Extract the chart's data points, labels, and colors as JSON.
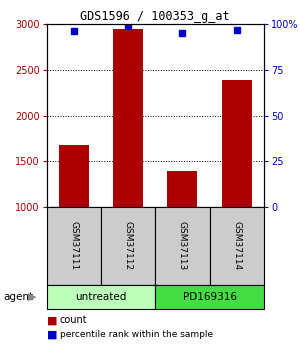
{
  "title": "GDS1596 / 100353_g_at",
  "samples": [
    "GSM37111",
    "GSM37112",
    "GSM37113",
    "GSM37114"
  ],
  "counts": [
    1680,
    2950,
    1390,
    2390
  ],
  "percentile_ranks": [
    96,
    99,
    95,
    97
  ],
  "ymin": 1000,
  "ymax": 3000,
  "yticks_left": [
    1000,
    1500,
    2000,
    2500,
    3000
  ],
  "yticks_right": [
    0,
    25,
    50,
    75,
    100
  ],
  "bar_color": "#aa0000",
  "dot_color": "#0000cc",
  "agent_groups": [
    {
      "label": "untreated",
      "samples": [
        0,
        1
      ],
      "color": "#bbffbb"
    },
    {
      "label": "PD169316",
      "samples": [
        2,
        3
      ],
      "color": "#44dd44"
    }
  ],
  "legend_count_color": "#aa0000",
  "legend_dot_color": "#0000cc",
  "sample_box_color": "#cccccc",
  "right_labels": [
    "0",
    "25",
    "50",
    "75",
    "100%"
  ]
}
